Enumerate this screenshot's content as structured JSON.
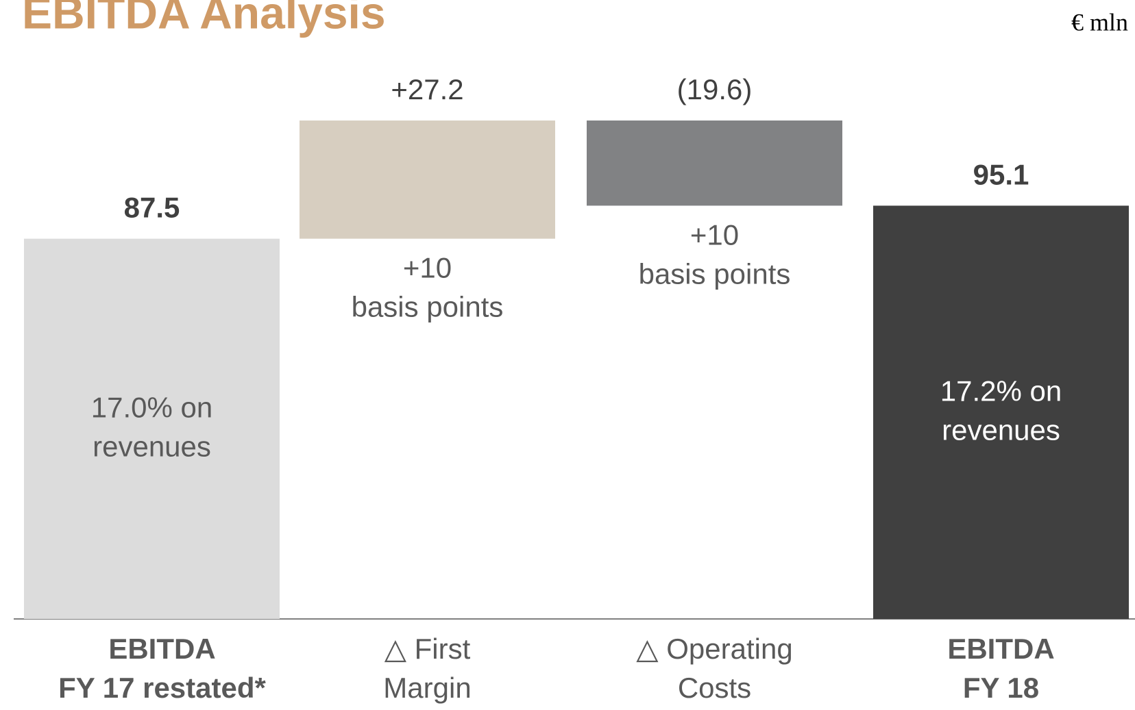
{
  "chart_data": {
    "type": "waterfall",
    "title": "EBITDA Analysis",
    "unit": "€ mln",
    "categories": [
      [
        "EBITDA",
        "FY 17 restated*"
      ],
      [
        "△ First",
        "Margin"
      ],
      [
        "△ Operating",
        "Costs"
      ],
      [
        "EBITDA",
        "FY 18"
      ]
    ],
    "measure": [
      "absolute",
      "relative",
      "relative",
      "total"
    ],
    "values": [
      87.5,
      27.2,
      -19.6,
      95.1
    ],
    "value_labels": [
      "87.5",
      "+27.2",
      "(19.6)",
      "95.1"
    ],
    "colors": [
      "#dcdcdc",
      "#d7cec0",
      "#818284",
      "#404040"
    ],
    "bar_notes": [
      [
        "17.0% on",
        "revenues"
      ],
      [
        "+10",
        "basis points"
      ],
      [
        "+10",
        "basis points"
      ],
      [
        "17.2% on",
        "revenues"
      ]
    ]
  }
}
